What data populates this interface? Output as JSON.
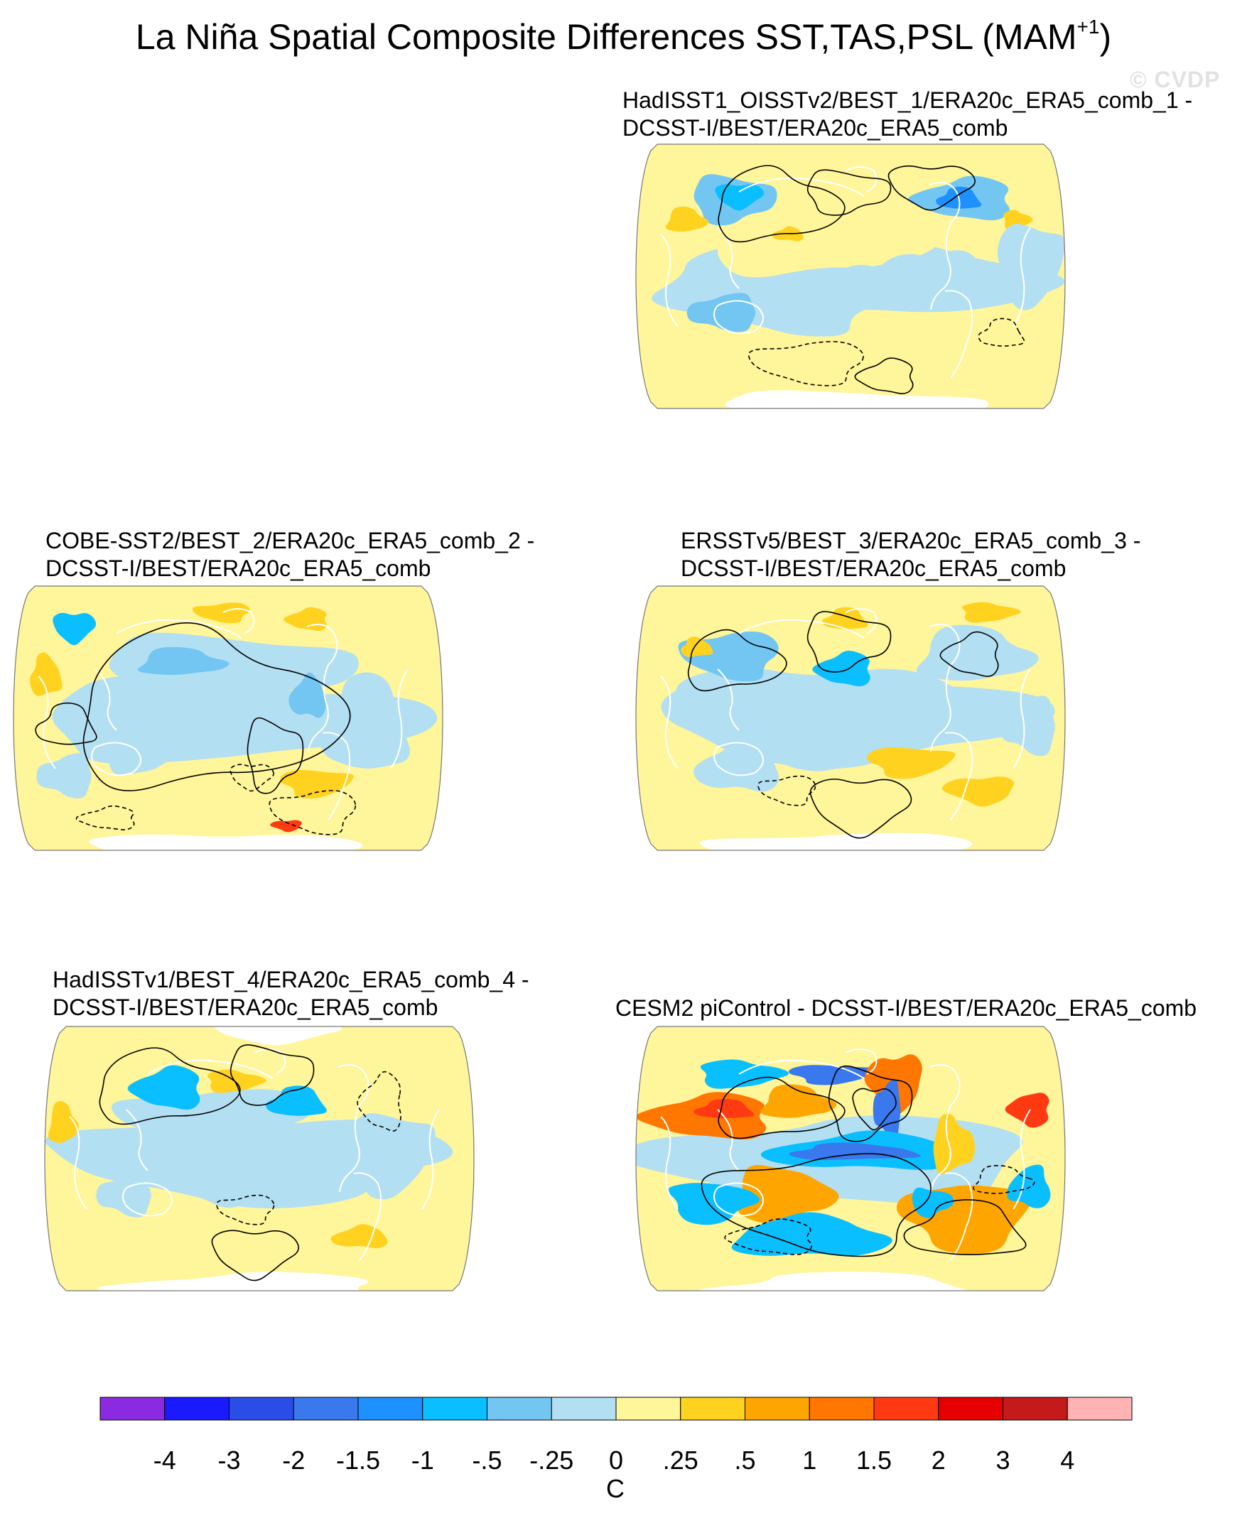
{
  "title": "La Niña Spatial Composite Differences SST,TAS,PSL (MAM",
  "title_superscript": "+1",
  "title_close": ")",
  "watermark": "© CVDP",
  "panels": [
    {
      "line1": "HadISST1_OISSTv2/BEST_1/ERA20c_ERA5_comb_1 -",
      "line2": "DCSST-I/BEST/ERA20c_ERA5_comb",
      "projection": "Robinson-like global map, Pacific-centered",
      "coastline_color": "white"
    },
    {
      "line1": "COBE-SST2/BEST_2/ERA20c_ERA5_comb_2 -",
      "line2": "DCSST-I/BEST/ERA20c_ERA5_comb",
      "projection": "Robinson-like global map, Pacific-centered",
      "coastline_color": "white"
    },
    {
      "line1": "ERSSTv5/BEST_3/ERA20c_ERA5_comb_3 -",
      "line2": "DCSST-I/BEST/ERA20c_ERA5_comb",
      "projection": "Robinson-like global map, Pacific-centered",
      "coastline_color": "white"
    },
    {
      "line1": "HadISSTv1/BEST_4/ERA20c_ERA5_comb_4 -",
      "line2": "DCSST-I/BEST/ERA20c_ERA5_comb",
      "projection": "Robinson-like global map, Pacific-centered",
      "coastline_color": "white"
    },
    {
      "line1": "CESM2 piControl - DCSST-I/BEST/ERA20c_ERA5_comb",
      "line2": "",
      "projection": "Robinson-like global map, Pacific-centered",
      "coastline_color": "white"
    }
  ],
  "colorbar": {
    "colors": [
      "#8a2be2",
      "#1a1aff",
      "#2a4de8",
      "#3a78ee",
      "#1e90ff",
      "#0abfff",
      "#73c6f2",
      "#b3dff2",
      "#fff59a",
      "#ffd21f",
      "#ffa500",
      "#ff7600",
      "#ff3a13",
      "#e60000",
      "#c41a1a",
      "#ffb3b3"
    ],
    "labels": [
      "-4",
      "-3",
      "-2",
      "-1.5",
      "-1",
      "-.5",
      "-.25",
      "0",
      ".25",
      ".5",
      "1",
      "1.5",
      "2",
      "3",
      "4"
    ],
    "units": "C"
  },
  "legend_colors": {
    "land_fill": "#ffffff",
    "map_border": "#777777",
    "psl_contour": "#000000"
  }
}
